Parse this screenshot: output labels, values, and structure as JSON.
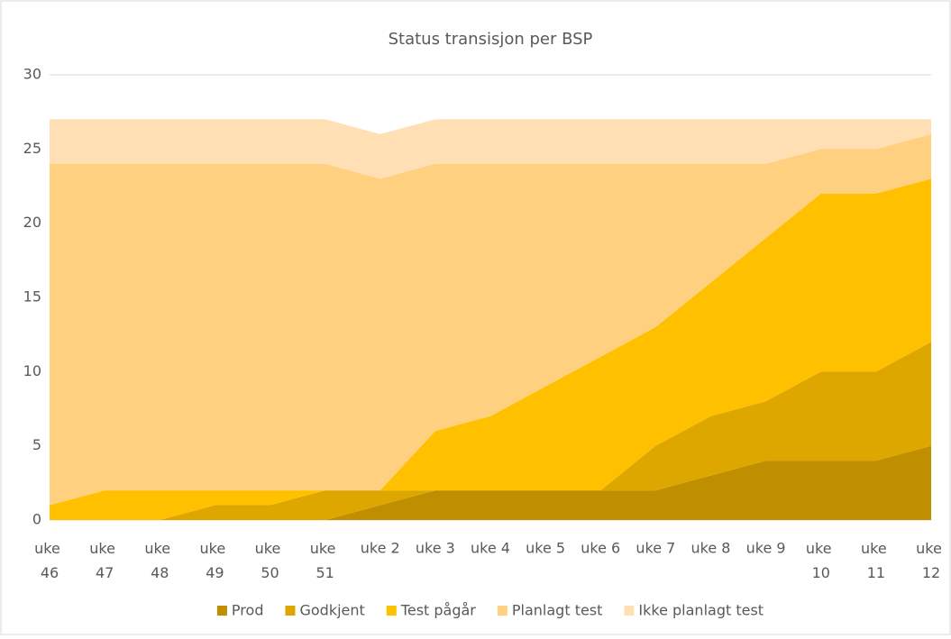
{
  "chart_data": {
    "type": "stacked_area",
    "title": "Status transisjon per BSP",
    "categories": [
      "uke 46",
      "uke 47",
      "uke 48",
      "uke 49",
      "uke 50",
      "uke 51",
      "uke 2",
      "uke 3",
      "uke 4",
      "uke 5",
      "uke 6",
      "uke 7",
      "uke 8",
      "uke 9",
      "uke 10",
      "uke 11",
      "uke 12"
    ],
    "series": [
      {
        "name": "Prod",
        "color": "#bf8f00",
        "values": [
          0,
          0,
          0,
          0,
          0,
          0,
          1,
          2,
          2,
          2,
          2,
          2,
          3,
          4,
          4,
          4,
          5
        ]
      },
      {
        "name": "Godkjent",
        "color": "#dea700",
        "values": [
          0,
          0,
          0,
          1,
          1,
          2,
          1,
          0,
          0,
          0,
          0,
          3,
          4,
          4,
          6,
          6,
          7
        ]
      },
      {
        "name": "Test pågår",
        "color": "#ffc000",
        "values": [
          1,
          2,
          2,
          1,
          1,
          0,
          0,
          4,
          5,
          7,
          9,
          8,
          9,
          11,
          12,
          12,
          11
        ]
      },
      {
        "name": "Planlagt test",
        "color": "#ffd07f",
        "values": [
          23,
          22,
          22,
          22,
          22,
          22,
          21,
          18,
          17,
          15,
          13,
          11,
          8,
          5,
          3,
          3,
          3
        ]
      },
      {
        "name": "Ikke planlagt test",
        "color": "#ffdfb3",
        "values": [
          3,
          3,
          3,
          3,
          3,
          3,
          3,
          3,
          3,
          3,
          3,
          3,
          3,
          3,
          2,
          2,
          1
        ]
      }
    ],
    "ylim": [
      0,
      30
    ],
    "yticks": [
      0,
      5,
      10,
      15,
      20,
      25,
      30
    ],
    "grid": true,
    "legend": "bottom"
  }
}
